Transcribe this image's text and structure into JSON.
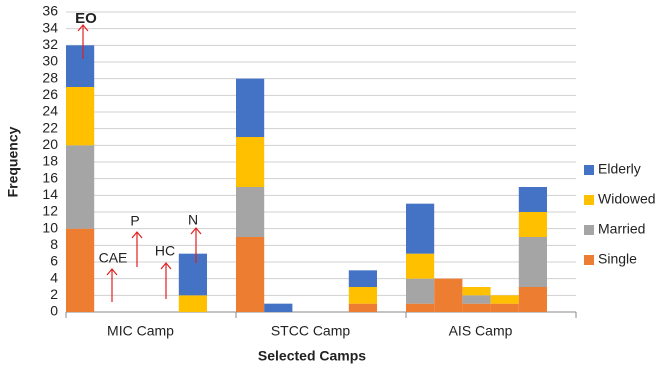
{
  "chart_data": {
    "type": "stacked_bar",
    "x_label": "Selected Camps",
    "y_label": "Frequency",
    "categories": [
      null,
      null,
      "MIC Camp",
      null,
      null,
      null,
      null,
      "STCC Camp",
      null,
      null,
      null,
      null,
      "AIS Camp",
      null,
      null
    ],
    "series": [
      {
        "name": "Single",
        "color": "#ED7D31",
        "values": [
          10,
          0,
          0,
          0,
          0,
          9,
          0,
          0,
          0,
          1,
          1,
          4,
          1,
          1,
          3
        ]
      },
      {
        "name": "Married",
        "color": "#A5A5A5",
        "values": [
          10,
          0,
          0,
          0,
          0,
          6,
          0,
          0,
          0,
          0,
          3,
          0,
          1,
          0,
          6
        ]
      },
      {
        "name": "Widowed",
        "color": "#FFC000",
        "values": [
          7,
          0,
          0,
          0,
          2,
          6,
          0,
          0,
          0,
          2,
          3,
          0,
          1,
          1,
          3
        ]
      },
      {
        "name": "Elderly",
        "color": "#4472C4",
        "values": [
          5,
          0,
          0,
          0,
          5,
          7,
          1,
          0,
          0,
          2,
          6,
          0,
          0,
          0,
          3
        ]
      }
    ],
    "ylim": [
      0,
      36
    ],
    "yticks": [
      0,
      2,
      4,
      6,
      8,
      10,
      12,
      14,
      16,
      18,
      20,
      22,
      24,
      26,
      28,
      30,
      32,
      34,
      36
    ],
    "grid": true,
    "legend": "right",
    "annotations": [
      "EO",
      "CAE",
      "P",
      "HC",
      "N"
    ]
  }
}
